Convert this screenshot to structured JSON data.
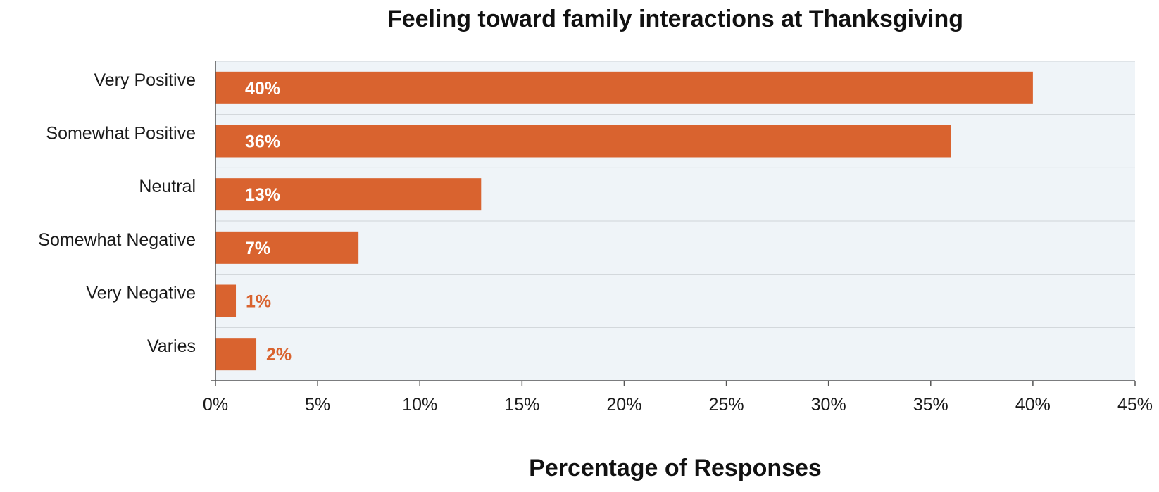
{
  "chart_data": {
    "type": "bar",
    "orientation": "horizontal",
    "title": "Feeling toward family interactions at Thanksgiving",
    "xlabel": "Percentage of Responses",
    "ylabel": "",
    "categories": [
      "Very Positive",
      "Somewhat Positive",
      "Neutral",
      "Somewhat Negative",
      "Very Negative",
      "Varies"
    ],
    "values": [
      40,
      36,
      13,
      7,
      1,
      2
    ],
    "value_labels": [
      "40%",
      "36%",
      "13%",
      "7%",
      "1%",
      "2%"
    ],
    "xlim": [
      0,
      45
    ],
    "x_ticks": [
      0,
      5,
      10,
      15,
      20,
      25,
      30,
      35,
      40,
      45
    ],
    "x_tick_labels": [
      "0%",
      "5%",
      "10%",
      "15%",
      "20%",
      "25%",
      "30%",
      "35%",
      "40%",
      "45%"
    ],
    "grid": true,
    "legend": "none",
    "colors": {
      "bar": "#d9632f",
      "plot_background": "#eff4f8",
      "gridline": "#cfd4d9",
      "axis": "#555555",
      "label_inside": "#ffffff",
      "label_outside": "#d9632f"
    }
  }
}
